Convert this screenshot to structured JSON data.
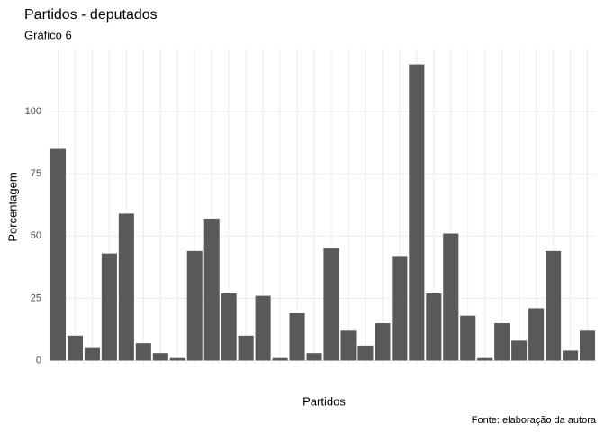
{
  "chart_data": {
    "type": "bar",
    "title": "Partidos - deputados",
    "subtitle": "Gráfico 6",
    "x_label": "Partidos",
    "y_label": "Porcentagem",
    "caption": "Fonte: elaboração da autora",
    "categories": [
      null,
      null,
      null,
      null,
      null,
      null,
      null,
      null,
      null,
      null,
      null,
      null,
      null,
      null,
      null,
      null,
      null,
      null,
      null,
      null,
      null,
      null,
      null,
      null,
      null,
      null,
      null,
      null,
      null,
      null,
      null,
      null
    ],
    "values": [
      85,
      10,
      5,
      43,
      59,
      7,
      3,
      1,
      44,
      57,
      27,
      10,
      26,
      1,
      19,
      3,
      45,
      12,
      6,
      15,
      42,
      119,
      27,
      51,
      18,
      1,
      15,
      8,
      21,
      44,
      4,
      12
    ],
    "color": "#595959",
    "ylim": [
      -2,
      125
    ],
    "yticks": [
      0,
      25,
      50,
      75,
      100
    ],
    "grid": true
  }
}
